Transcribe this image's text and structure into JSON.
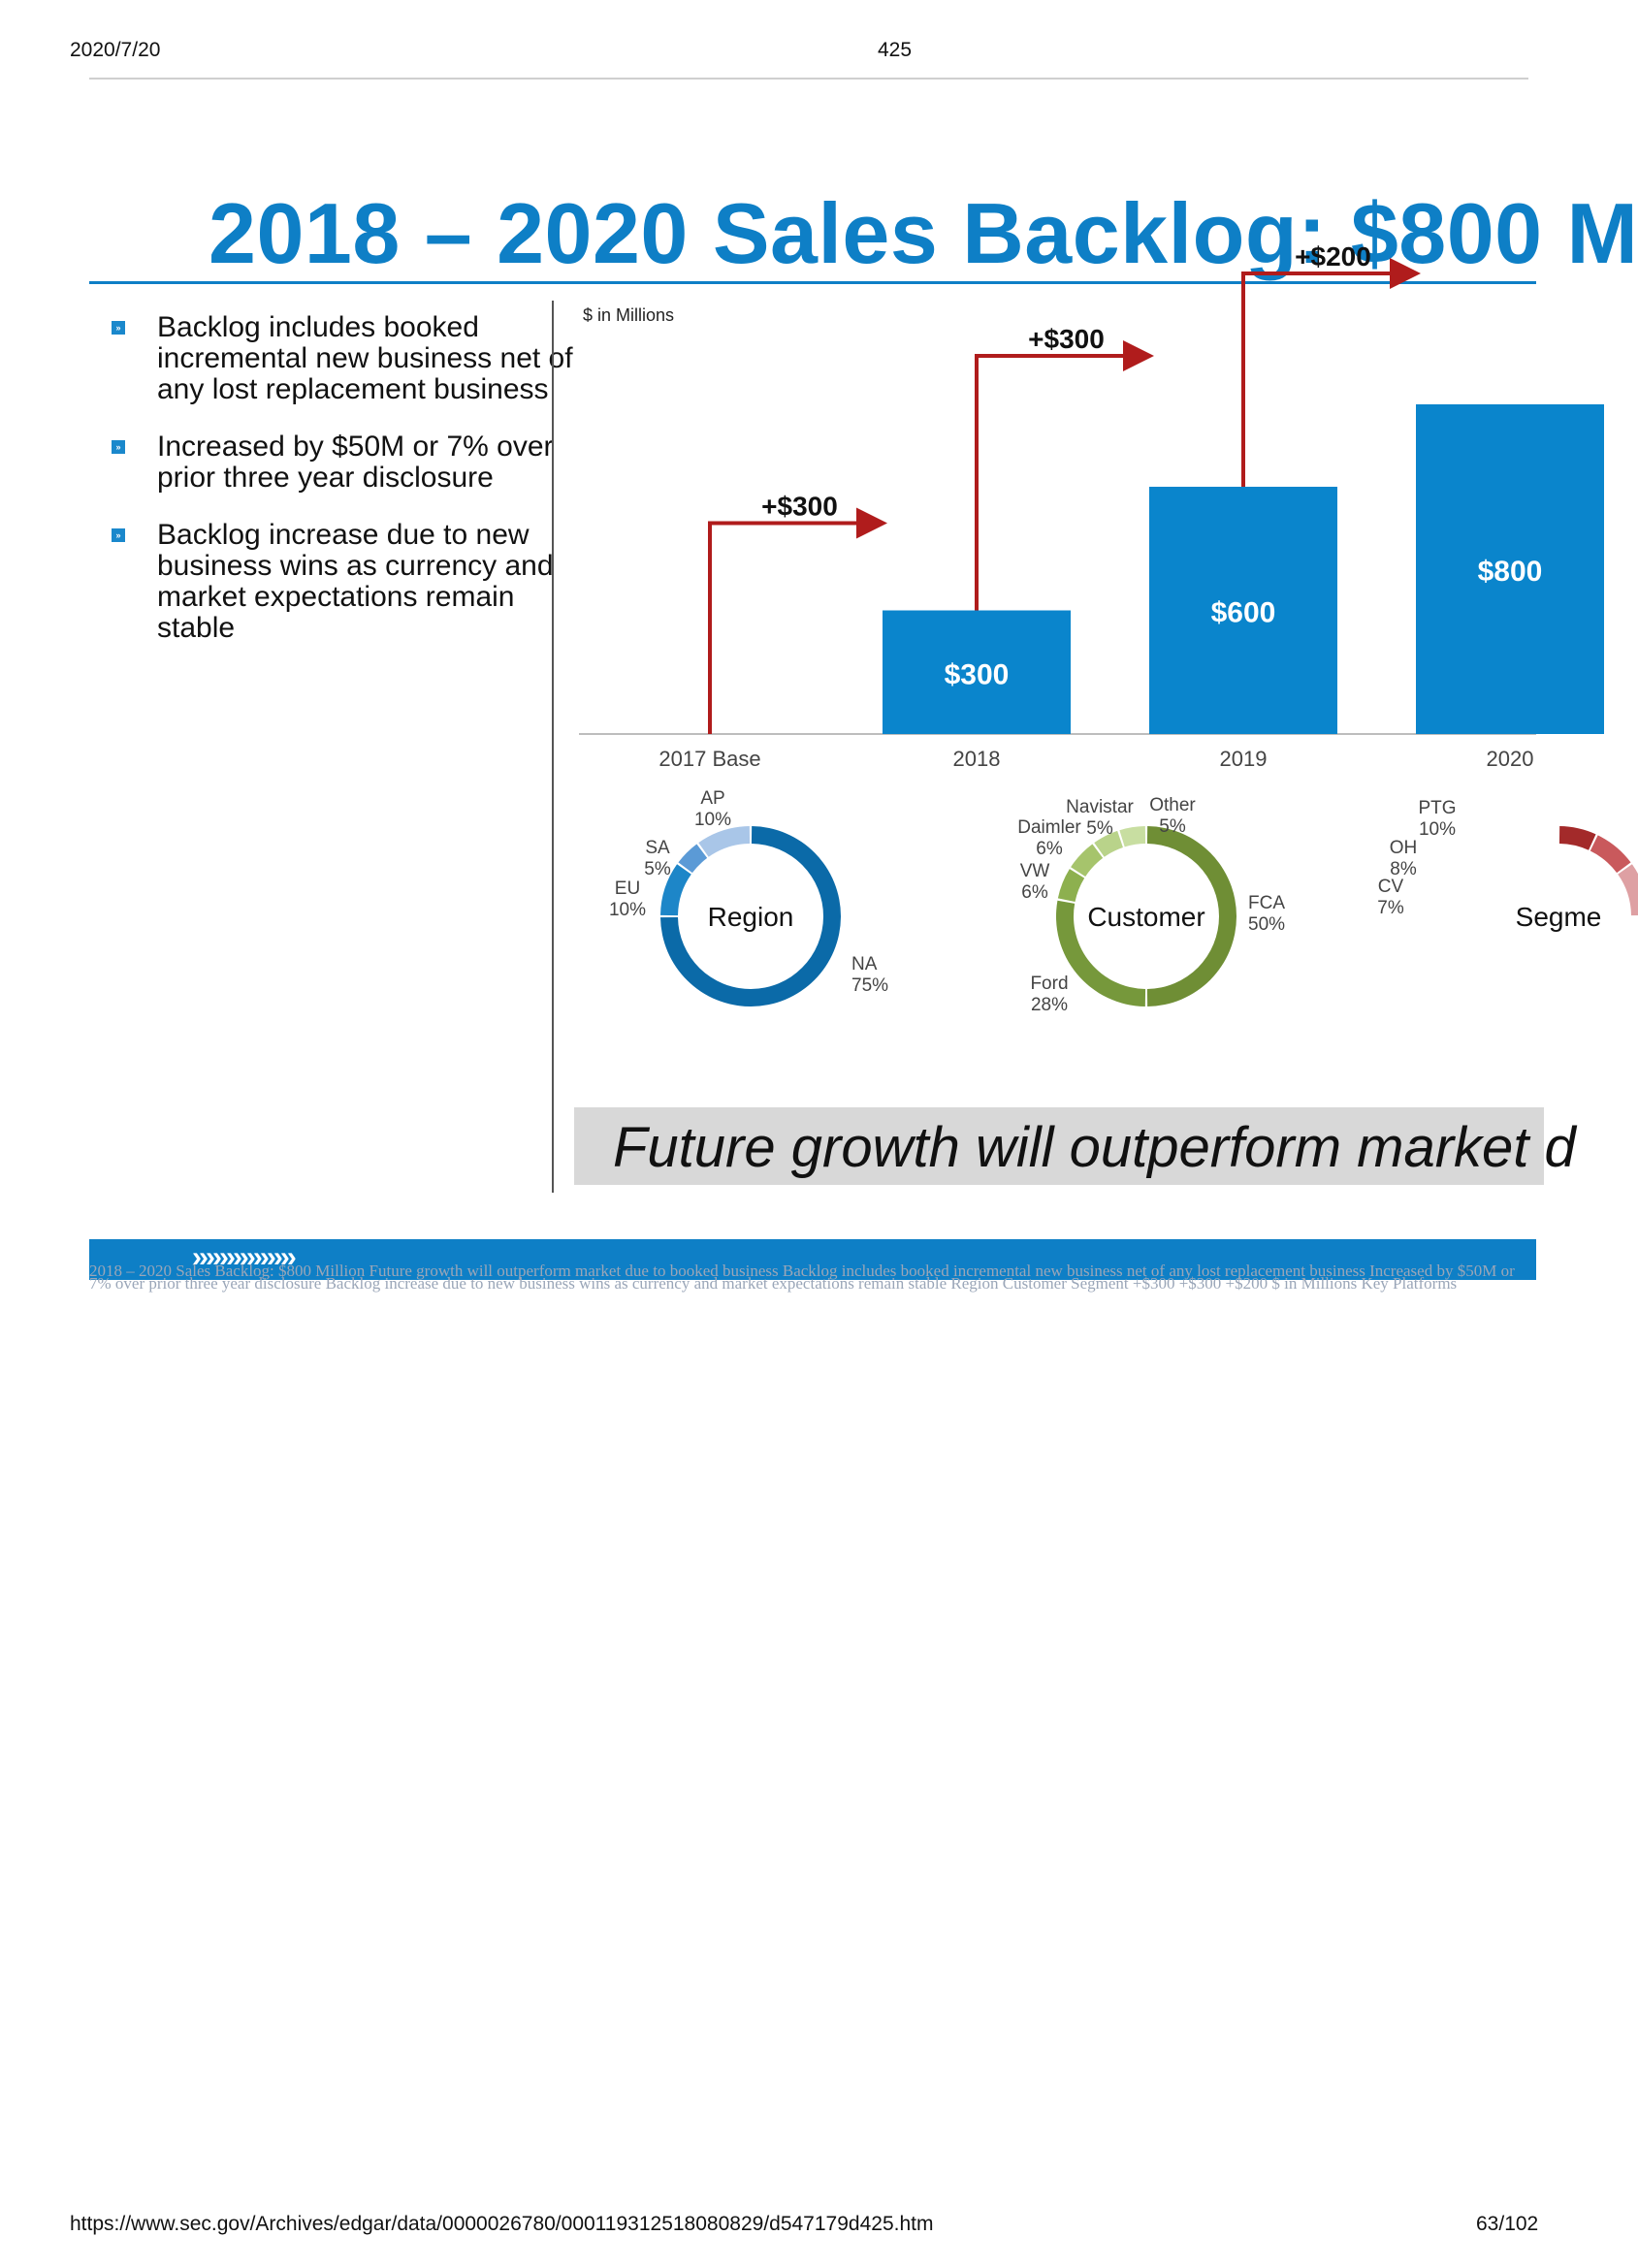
{
  "header": {
    "date": "2020/7/20",
    "page": "425"
  },
  "slide": {
    "title": "2018 – 2020 Sales Backlog: $800 M",
    "bullets": [
      "Backlog includes booked incremental new business net of any lost replacement business",
      "Increased by $50M or 7% over prior three year disclosure",
      "Backlog increase due to new business wins as currency and market expectations remain stable"
    ],
    "units_label": "$ in Millions",
    "banner": "Future growth will outperform market d",
    "footer_chevrons": "›››››››››››››››",
    "alt_text": "2018 – 2020 Sales Backlog: $800 Million Future growth will outperform market due to booked business Backlog includes booked incremental new business net of any lost replacement business Increased by $50M or 7% over prior three year disclosure Backlog increase due to new business wins as currency and market expectations remain stable Region Customer Segment +$300 +$300 +$200 $ in Millions Key Platforms"
  },
  "colors": {
    "accent": "#0e7fc6",
    "bar": "#0a85cc",
    "arrow": "#b01c1c",
    "region_ring": [
      "#0b6aa8",
      "#1d86c8",
      "#5b9ad6",
      "#a9c6e8"
    ],
    "customer_ring": [
      "#6f8e35",
      "#76983b",
      "#8db04f",
      "#a6c46c",
      "#b9d38a",
      "#c8dea1"
    ],
    "segment_ring": [
      "#a32a2a",
      "#c9595c",
      "#dea0a3",
      "#e9c1c2"
    ]
  },
  "chart_data": [
    {
      "type": "bar",
      "title": "",
      "categories": [
        "2017 Base",
        "2018",
        "2019",
        "2020"
      ],
      "values": [
        0,
        300,
        600,
        800
      ],
      "value_labels": [
        "",
        "$300",
        "$600",
        "$800"
      ],
      "increments": [
        "+$300",
        "+$300",
        "+$200"
      ],
      "ylabel": "$ in Millions",
      "ylim": [
        0,
        800
      ],
      "grid": false
    },
    {
      "type": "pie",
      "title": "Region",
      "slices": [
        {
          "label": "NA",
          "value": 75,
          "pct": "75%"
        },
        {
          "label": "EU",
          "value": 10,
          "pct": "10%"
        },
        {
          "label": "SA",
          "value": 5,
          "pct": "5%"
        },
        {
          "label": "AP",
          "value": 10,
          "pct": "10%"
        }
      ]
    },
    {
      "type": "pie",
      "title": "Customer",
      "slices": [
        {
          "label": "FCA",
          "value": 50,
          "pct": "50%"
        },
        {
          "label": "Ford",
          "value": 28,
          "pct": "28%"
        },
        {
          "label": "VW",
          "value": 6,
          "pct": "6%"
        },
        {
          "label": "Daimler",
          "value": 6,
          "pct": "6%"
        },
        {
          "label": "Navistar",
          "value": 5,
          "pct": "5%"
        },
        {
          "label": "Other",
          "value": 5,
          "pct": "5%"
        }
      ]
    },
    {
      "type": "pie",
      "title": "Segme",
      "slices": [
        {
          "label": "CV",
          "value": 7,
          "pct": "7%"
        },
        {
          "label": "OH",
          "value": 8,
          "pct": "8%"
        },
        {
          "label": "PTG",
          "value": 10,
          "pct": "10%"
        }
      ]
    }
  ],
  "footer": {
    "url": "https://www.sec.gov/Archives/edgar/data/0000026780/000119312518080829/d547179d425.htm",
    "page": "63/102"
  }
}
